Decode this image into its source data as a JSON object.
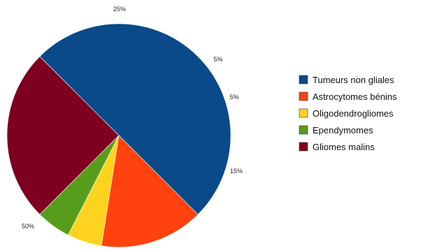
{
  "chart_data": {
    "type": "pie",
    "title": "",
    "categories": [
      "Tumeurs non gliales",
      "Astrocytomes bénins",
      "Oligodendrogliomes",
      "Ependymomes",
      "Gliomes malins"
    ],
    "values": [
      50,
      15,
      5,
      5,
      25
    ],
    "value_labels": [
      "50%",
      "15%",
      "5%",
      "5%",
      "25%"
    ],
    "colors": [
      "#0a4a8a",
      "#ff420e",
      "#ffd320",
      "#579d1c",
      "#7e0021"
    ],
    "legend_position": "right",
    "start_angle": "225 degrees (lower-left), clockwise"
  }
}
